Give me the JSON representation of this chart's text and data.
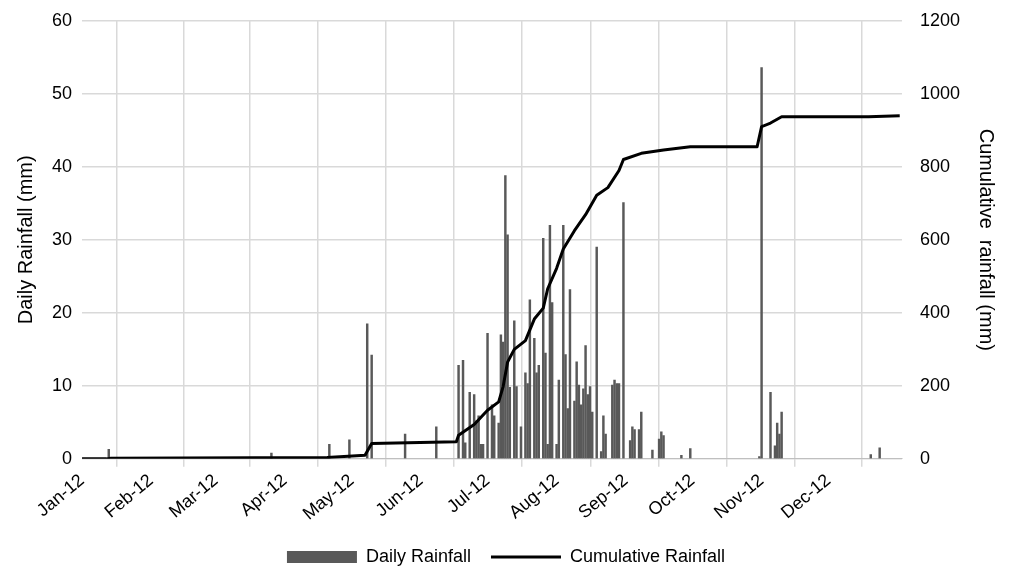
{
  "chart_data": {
    "type": "bar",
    "ylabel": "Daily Rainfall (mm)",
    "y2label": "Cumulative  rainfall (mm)",
    "xlim": [
      "2012-01-01",
      "2013-01-03"
    ],
    "xticks": [
      {
        "value": "2012-01-01",
        "label": "Jan-12"
      },
      {
        "value": "2012-02-01",
        "label": "Feb-12"
      },
      {
        "value": "2012-03-01",
        "label": "Mar-12"
      },
      {
        "value": "2012-04-01",
        "label": "Apr-12"
      },
      {
        "value": "2012-05-01",
        "label": "May-12"
      },
      {
        "value": "2012-06-01",
        "label": "Jun-12"
      },
      {
        "value": "2012-07-01",
        "label": "Jul-12"
      },
      {
        "value": "2012-08-01",
        "label": "Aug-12"
      },
      {
        "value": "2012-09-01",
        "label": "Sep-12"
      },
      {
        "value": "2012-10-01",
        "label": "Oct-12"
      },
      {
        "value": "2012-11-01",
        "label": "Nov-12"
      },
      {
        "value": "2012-12-01",
        "label": "Dec-12"
      }
    ],
    "ylim": [
      0,
      60
    ],
    "yticks": [
      0,
      10,
      20,
      30,
      40,
      50,
      60
    ],
    "y2lim": [
      0,
      1200
    ],
    "y2ticks": [
      0,
      200,
      400,
      600,
      800,
      1000,
      1200
    ],
    "grid": true,
    "legend": "bottom",
    "series": [
      {
        "name": "Daily Rainfall",
        "color": "#595959",
        "x": [
          "2012-01-13",
          "2012-03-26",
          "2012-04-21",
          "2012-04-30",
          "2012-05-08",
          "2012-05-10",
          "2012-05-25",
          "2012-06-08",
          "2012-06-18",
          "2012-06-20",
          "2012-06-21",
          "2012-06-23",
          "2012-06-25",
          "2012-06-26",
          "2012-06-27",
          "2012-06-28",
          "2012-06-29",
          "2012-07-01",
          "2012-07-03",
          "2012-07-04",
          "2012-07-06",
          "2012-07-07",
          "2012-07-08",
          "2012-07-09",
          "2012-07-10",
          "2012-07-11",
          "2012-07-13",
          "2012-07-14",
          "2012-07-16",
          "2012-07-18",
          "2012-07-19",
          "2012-07-20",
          "2012-07-22",
          "2012-07-23",
          "2012-07-24",
          "2012-07-26",
          "2012-07-27",
          "2012-07-28",
          "2012-07-29",
          "2012-07-30",
          "2012-08-01",
          "2012-08-02",
          "2012-08-04",
          "2012-08-05",
          "2012-08-06",
          "2012-08-07",
          "2012-08-09",
          "2012-08-10",
          "2012-08-11",
          "2012-08-12",
          "2012-08-13",
          "2012-08-14",
          "2012-08-15",
          "2012-08-16",
          "2012-08-17",
          "2012-08-19",
          "2012-08-21",
          "2012-08-22",
          "2012-08-23",
          "2012-08-26",
          "2012-08-27",
          "2012-08-28",
          "2012-08-29",
          "2012-08-31",
          "2012-09-03",
          "2012-09-04",
          "2012-09-05",
          "2012-09-07",
          "2012-09-08",
          "2012-09-13",
          "2012-09-16",
          "2012-09-17",
          "2012-09-18",
          "2012-09-26",
          "2012-09-30",
          "2012-10-31",
          "2012-11-01",
          "2012-11-05",
          "2012-11-07",
          "2012-11-08",
          "2012-11-09",
          "2012-11-10",
          "2012-12-20",
          "2012-12-24"
        ],
        "values": [
          1.3,
          0.8,
          2.0,
          2.6,
          18.5,
          14.2,
          3.4,
          4.4,
          12.8,
          13.5,
          2.2,
          9.1,
          8.8,
          5.2,
          5.9,
          2.0,
          2.0,
          17.2,
          7.4,
          5.9,
          4.9,
          17.0,
          16.0,
          38.8,
          30.7,
          9.8,
          18.9,
          9.9,
          4.4,
          11.8,
          10.3,
          21.8,
          16.5,
          11.8,
          12.8,
          30.2,
          14.5,
          2.0,
          32.0,
          21.4,
          2.0,
          10.8,
          32.0,
          14.3,
          6.9,
          23.2,
          7.9,
          13.3,
          10.1,
          7.4,
          9.6,
          15.5,
          8.8,
          9.9,
          6.4,
          29.0,
          1.0,
          5.9,
          3.4,
          10.1,
          10.8,
          10.3,
          10.3,
          35.1,
          2.5,
          4.4,
          4.0,
          4.0,
          6.4,
          1.2,
          2.7,
          3.7,
          3.2,
          0.5,
          1.4,
          0.3,
          53.6,
          9.1,
          1.8,
          4.9,
          3.4,
          6.4,
          0.6,
          1.5
        ]
      },
      {
        "name": "Cumulative Rainfall",
        "type": "line",
        "color": "#000000",
        "axis": "y2",
        "x": [
          "2012-01-01",
          "2012-01-12",
          "2012-01-14",
          "2012-04-20",
          "2012-05-07",
          "2012-05-10",
          "2012-06-17",
          "2012-06-18",
          "2012-06-25",
          "2012-07-01",
          "2012-07-06",
          "2012-07-08",
          "2012-07-10",
          "2012-07-13",
          "2012-07-18",
          "2012-07-22",
          "2012-07-26",
          "2012-07-28",
          "2012-08-01",
          "2012-08-04",
          "2012-08-09",
          "2012-08-14",
          "2012-08-19",
          "2012-08-24",
          "2012-08-29",
          "2012-08-31",
          "2012-09-08",
          "2012-09-18",
          "2012-09-30",
          "2012-10-30",
          "2012-11-01",
          "2012-11-05",
          "2012-11-10",
          "2012-12-19",
          "2013-01-02"
        ],
        "values": [
          0,
          0,
          2,
          4,
          10,
          42,
          47,
          65,
          94,
          133,
          156,
          198,
          265,
          300,
          324,
          383,
          413,
          466,
          522,
          575,
          625,
          669,
          722,
          743,
          790,
          820,
          837,
          846,
          855,
          855,
          910,
          920,
          937,
          937,
          940
        ]
      }
    ]
  }
}
